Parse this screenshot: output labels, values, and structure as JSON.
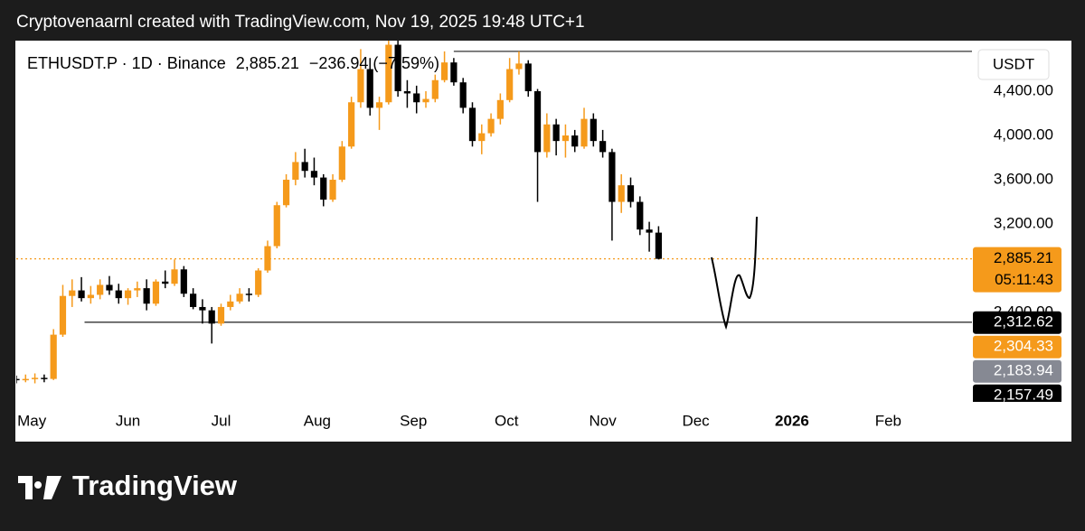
{
  "header": {
    "attribution": "Cryptovenaarnl created with TradingView.com, Nov 19, 2025 19:48 UTC+1"
  },
  "chart_data": {
    "type": "candlestick",
    "symbol": "ETHUSDT.P · 1D · Binance",
    "last": "2,885.21",
    "change": "−236.94 (−7.59%)",
    "currency": "USDT",
    "up_color": "#f59a1b",
    "down_color": "#000000",
    "x": [
      -5,
      -2,
      1,
      4,
      7,
      10,
      13,
      16,
      19,
      22,
      25,
      28,
      31,
      34,
      37,
      40,
      43,
      46,
      49,
      52,
      55,
      58,
      61,
      64,
      67,
      70,
      73,
      76,
      79,
      82,
      85,
      88,
      91,
      94,
      97,
      100,
      103,
      106,
      109,
      112,
      115,
      118,
      121,
      124,
      127,
      130,
      133,
      136,
      139,
      142,
      145,
      148,
      151,
      154,
      157,
      160,
      163,
      166,
      169,
      172,
      175,
      178,
      181,
      184,
      187,
      190,
      193,
      196,
      199,
      202
    ],
    "open": [
      1800,
      1790,
      1800,
      1810,
      1800,
      2200,
      2550,
      2600,
      2530,
      2560,
      2650,
      2600,
      2530,
      2600,
      2620,
      2480,
      2680,
      2660,
      2790,
      2570,
      2450,
      2420,
      2300,
      2450,
      2500,
      2570,
      2560,
      2780,
      3000,
      3370,
      3600,
      3760,
      3680,
      3620,
      3420,
      3600,
      3900,
      4300,
      4600,
      4250,
      4300,
      4820,
      4400,
      4380,
      4300,
      4330,
      4500,
      4660,
      4480,
      4250,
      3950,
      4020,
      4150,
      4320,
      4600,
      4650,
      4400,
      3850,
      4100,
      3950,
      4000,
      3900,
      4150,
      3950,
      3850,
      3400,
      3550,
      3400,
      3150,
      3122
    ],
    "high": [
      1830,
      1840,
      1850,
      1840,
      2250,
      2650,
      2700,
      2720,
      2640,
      2700,
      2730,
      2660,
      2620,
      2680,
      2700,
      2700,
      2780,
      2880,
      2820,
      2620,
      2520,
      2450,
      2480,
      2560,
      2620,
      2620,
      2800,
      3050,
      3400,
      3650,
      3850,
      3880,
      3800,
      3650,
      3650,
      3950,
      4350,
      4780,
      4700,
      4350,
      4900,
      4950,
      4500,
      4450,
      4400,
      4550,
      4760,
      4700,
      4520,
      4300,
      4100,
      4200,
      4380,
      4700,
      4760,
      4680,
      4420,
      4200,
      4150,
      4100,
      4050,
      4250,
      4200,
      4050,
      3880,
      3650,
      3620,
      3450,
      3220,
      3180
    ],
    "low": [
      1760,
      1770,
      1760,
      1770,
      1790,
      2180,
      2450,
      2500,
      2480,
      2520,
      2560,
      2480,
      2470,
      2540,
      2420,
      2460,
      2620,
      2640,
      2540,
      2430,
      2300,
      2120,
      2280,
      2420,
      2480,
      2500,
      2540,
      2760,
      2980,
      3350,
      3550,
      3620,
      3550,
      3360,
      3400,
      3580,
      3880,
      4250,
      4180,
      4050,
      4280,
      4350,
      4250,
      4200,
      4250,
      4300,
      4480,
      4450,
      4200,
      3900,
      3830,
      3990,
      4100,
      4300,
      4550,
      4350,
      3400,
      3800,
      3820,
      3800,
      3850,
      3880,
      3900,
      3800,
      3050,
      3300,
      3350,
      3100,
      2950,
      2880
    ],
    "close": [
      1790,
      1800,
      1810,
      1800,
      2200,
      2550,
      2600,
      2530,
      2560,
      2650,
      2600,
      2530,
      2600,
      2620,
      2480,
      2680,
      2660,
      2790,
      2570,
      2450,
      2420,
      2300,
      2450,
      2500,
      2570,
      2560,
      2780,
      3000,
      3370,
      3600,
      3760,
      3680,
      3620,
      3420,
      3600,
      3900,
      4300,
      4600,
      4250,
      4300,
      4820,
      4400,
      4380,
      4300,
      4330,
      4500,
      4660,
      4480,
      4250,
      3950,
      4020,
      4150,
      4320,
      4600,
      4650,
      4400,
      3850,
      4100,
      3950,
      4000,
      3900,
      4150,
      3950,
      3850,
      3400,
      3550,
      3400,
      3150,
      3122,
      2885.21
    ],
    "xlim": [
      -5,
      303
    ],
    "xticks": [
      {
        "value": 0,
        "label": "May"
      },
      {
        "value": 31,
        "label": "Jun"
      },
      {
        "value": 61,
        "label": "Jul"
      },
      {
        "value": 92,
        "label": "Aug"
      },
      {
        "value": 123,
        "label": "Sep"
      },
      {
        "value": 153,
        "label": "Oct"
      },
      {
        "value": 184,
        "label": "Nov"
      },
      {
        "value": 214,
        "label": "Dec"
      },
      {
        "value": 245,
        "label": "2026",
        "bold": true
      },
      {
        "value": 276,
        "label": "Feb"
      }
    ],
    "ylim": [
      1552,
      4857
    ],
    "yticks": [
      {
        "value": 4400,
        "label": "4,400.00"
      },
      {
        "value": 4000,
        "label": "4,000.00"
      },
      {
        "value": 3600,
        "label": "3,600.00"
      },
      {
        "value": 3200,
        "label": "3,200.00"
      },
      {
        "value": 2400,
        "label": "2,400.00"
      }
    ],
    "last_price": {
      "value": 2885.21,
      "label": "2,885.21",
      "countdown": "05:11:43",
      "color": "#f59a1b"
    },
    "horizontal_lines": [
      {
        "value": 4760,
        "x_start": 136
      },
      {
        "value": 2312.62,
        "x_start": 17
      }
    ],
    "price_labels": [
      {
        "value": 2312.62,
        "label": "2,312.62",
        "color": "#000000"
      },
      {
        "value": 2304.33,
        "label": "2,304.33",
        "color": "#f59a1b"
      },
      {
        "value": 2183.94,
        "label": "2,183.94",
        "color": "#868993"
      },
      {
        "value": 2157.49,
        "label": "2,157.49",
        "color": "#000000"
      }
    ]
  },
  "footer": {
    "brand": "TradingView"
  }
}
